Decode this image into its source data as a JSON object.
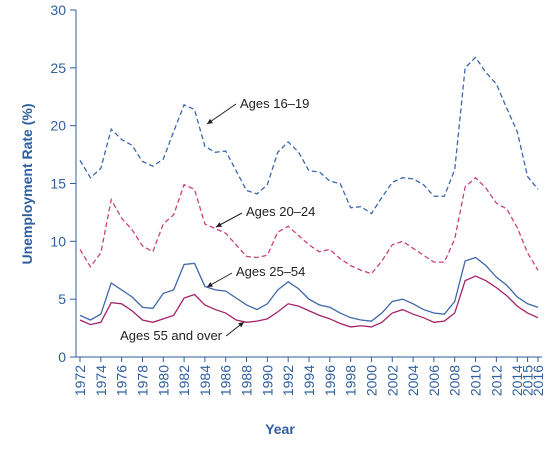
{
  "chart_data": {
    "type": "line",
    "xlabel": "Year",
    "ylabel": "Unemployment Rate (%)",
    "x": [
      1972,
      1973,
      1974,
      1975,
      1976,
      1977,
      1978,
      1979,
      1980,
      1981,
      1982,
      1983,
      1984,
      1985,
      1986,
      1987,
      1988,
      1989,
      1990,
      1991,
      1992,
      1993,
      1994,
      1995,
      1996,
      1997,
      1998,
      1999,
      2000,
      2001,
      2002,
      2003,
      2004,
      2005,
      2006,
      2007,
      2008,
      2009,
      2010,
      2011,
      2012,
      2013,
      2014,
      2015,
      2016
    ],
    "series": [
      {
        "name": "Ages 16–19",
        "color": "#3d68aa",
        "dashed": true,
        "values": [
          17,
          15.5,
          16.3,
          19.7,
          18.8,
          18.3,
          16.9,
          16.5,
          17.1,
          19.5,
          21.8,
          21.4,
          18.2,
          17.7,
          17.8,
          16.1,
          14.4,
          14.1,
          14.9,
          17.7,
          18.6,
          17.7,
          16.1,
          16.0,
          15.2,
          15.0,
          12.9,
          13.0,
          12.4,
          13.8,
          15.1,
          15.5,
          15.4,
          14.9,
          13.9,
          13.9,
          16.2,
          25.0,
          25.9,
          24.6,
          23.6,
          21.5,
          19.5,
          15.6,
          14.5
        ]
      },
      {
        "name": "Ages 20–24",
        "color": "#c8437a",
        "dashed": true,
        "values": [
          9.3,
          7.8,
          9.0,
          13.6,
          12.0,
          11.0,
          9.6,
          9.1,
          11.5,
          12.3,
          14.9,
          14.5,
          11.5,
          11.1,
          10.7,
          9.7,
          8.7,
          8.6,
          8.8,
          10.8,
          11.3,
          10.5,
          9.7,
          9.1,
          9.3,
          8.5,
          7.9,
          7.5,
          7.2,
          8.3,
          9.7,
          10.0,
          9.4,
          8.8,
          8.2,
          8.2,
          10.2,
          14.7,
          15.5,
          14.6,
          13.3,
          12.8,
          11.2,
          9.0,
          7.5
        ]
      },
      {
        "name": "Ages 25–54",
        "color": "#3d68aa",
        "dashed": false,
        "values": [
          3.6,
          3.2,
          3.7,
          6.4,
          5.8,
          5.2,
          4.3,
          4.2,
          5.5,
          5.8,
          8.0,
          8.1,
          6.1,
          5.8,
          5.7,
          5.1,
          4.5,
          4.1,
          4.6,
          5.8,
          6.5,
          5.9,
          5.0,
          4.5,
          4.3,
          3.8,
          3.4,
          3.2,
          3.1,
          3.8,
          4.8,
          5.0,
          4.6,
          4.1,
          3.8,
          3.7,
          4.8,
          8.3,
          8.6,
          7.9,
          6.9,
          6.2,
          5.2,
          4.6,
          4.3
        ]
      },
      {
        "name": "Ages 55 and over",
        "color": "#a3226b",
        "dashed": false,
        "values": [
          3.2,
          2.8,
          3.0,
          4.7,
          4.6,
          4.0,
          3.2,
          3.0,
          3.3,
          3.6,
          5.1,
          5.4,
          4.5,
          4.1,
          3.8,
          3.2,
          3.0,
          3.1,
          3.3,
          3.9,
          4.6,
          4.4,
          4.0,
          3.6,
          3.3,
          2.9,
          2.6,
          2.7,
          2.6,
          3.0,
          3.8,
          4.1,
          3.7,
          3.4,
          3.0,
          3.1,
          3.8,
          6.6,
          7.0,
          6.6,
          6.0,
          5.3,
          4.4,
          3.8,
          3.4
        ]
      }
    ],
    "xlim": [
      1972,
      2016
    ],
    "xticks": [
      1972,
      1974,
      1976,
      1978,
      1980,
      1982,
      1984,
      1986,
      1988,
      1990,
      1992,
      1994,
      1996,
      1998,
      2000,
      2002,
      2004,
      2006,
      2008,
      2010,
      2012,
      2014,
      2015,
      2016
    ],
    "ylim": [
      0,
      30
    ],
    "yticks": [
      0,
      5,
      10,
      15,
      20,
      25,
      30
    ],
    "grid": false
  }
}
